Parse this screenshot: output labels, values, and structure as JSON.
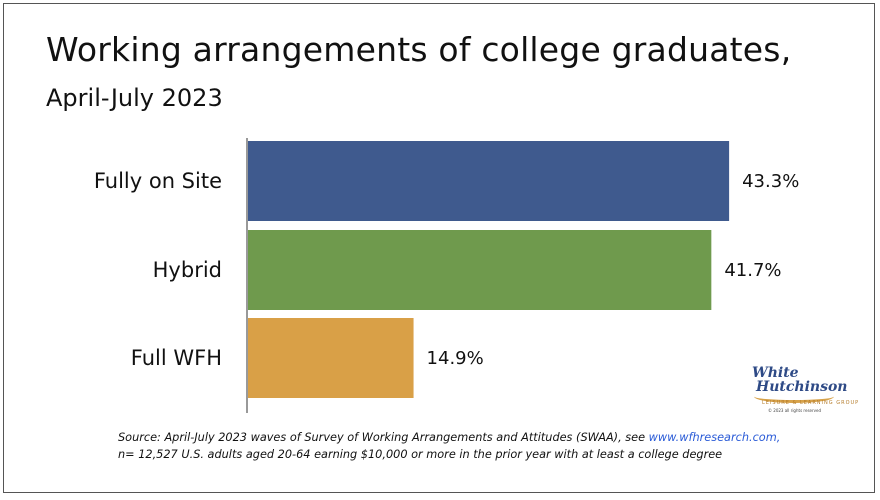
{
  "title": "Working arrangements of college graduates,",
  "subtitle": "April-July 2023",
  "chart_data": {
    "type": "bar",
    "orientation": "horizontal",
    "categories": [
      "Fully on Site",
      "Hybrid",
      "Full WFH"
    ],
    "values": [
      43.3,
      41.7,
      14.9
    ],
    "value_labels": [
      "43.3%",
      "41.7%",
      "14.9%"
    ],
    "colors": [
      "#3f5a8e",
      "#6f9a4d",
      "#d9a047"
    ],
    "unit": "%",
    "xlim": [
      0,
      45
    ],
    "grid": false,
    "legend": "none"
  },
  "logo": {
    "line1": "White",
    "line2": "Hutchinson",
    "line3": "LEISURE & LEARNING GROUP",
    "line4": "© 2023 all rights reserved"
  },
  "source": {
    "line1_text": "Source: April-July 2023 waves of Survey of Working Arrangements and Attitudes (SWAA), see ",
    "link": "www.wfhresearch.com,",
    "line2": "n= 12,527 U.S. adults aged 20-64 earning $10,000 or more in the prior year with at least a college degree"
  }
}
